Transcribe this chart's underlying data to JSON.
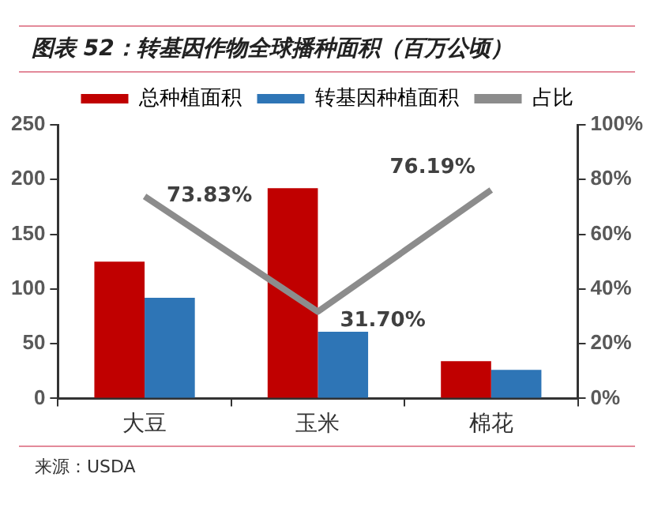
{
  "chart_data": {
    "type": "bar",
    "title": "图表 52：转基因作物全球播种面积（百万公顷）",
    "categories": [
      "大豆",
      "玉米",
      "棉花"
    ],
    "series": [
      {
        "name": "总种植面积",
        "color": "#c00000",
        "values": [
          125,
          192,
          34
        ]
      },
      {
        "name": "转基因种植面积",
        "color": "#2e75b6",
        "values": [
          92,
          61,
          26
        ]
      },
      {
        "name": "占比",
        "type": "line",
        "axis": "y2",
        "color": "#8c8c8c",
        "values": [
          73.83,
          31.7,
          76.19
        ],
        "value_labels": [
          "73.83%",
          "31.70%",
          "76.19%"
        ]
      }
    ],
    "ylim": [
      0,
      250
    ],
    "yticks": [
      0,
      50,
      100,
      150,
      200,
      250
    ],
    "y2lim": [
      0,
      100
    ],
    "y2ticks": [
      {
        "value": 0,
        "label": "0%"
      },
      {
        "value": 20,
        "label": "20%"
      },
      {
        "value": 40,
        "label": "40%"
      },
      {
        "value": 60,
        "label": "60%"
      },
      {
        "value": 80,
        "label": "80%"
      },
      {
        "value": 100,
        "label": "100%"
      }
    ],
    "legend": "top",
    "marker": "none",
    "annotations": [
      "来源：USDA"
    ]
  }
}
